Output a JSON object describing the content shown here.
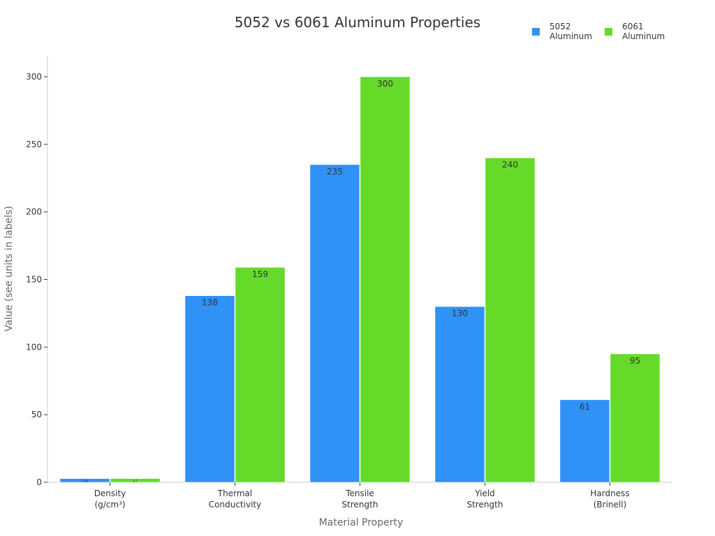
{
  "chart_data": {
    "type": "bar",
    "title": "5052 vs 6061 Aluminum Properties",
    "xlabel": "Material Property",
    "ylabel": "Value (see units in labels)",
    "categories": [
      "Density\n(g/cm³)",
      "Thermal\nConductivity",
      "Tensile\nStrength",
      "Yield\nStrength",
      "Hardness\n(Brinell)"
    ],
    "series": [
      {
        "name": "5052\nAluminum",
        "color": "#3091f7",
        "values": [
          2.68,
          138,
          235,
          130,
          61
        ]
      },
      {
        "name": "6061\nAluminum",
        "color": "#66da29",
        "values": [
          2.7,
          159,
          300,
          240,
          95
        ]
      }
    ],
    "ylim": [
      0,
      315
    ],
    "yticks": [
      0,
      50,
      100,
      150,
      200,
      250,
      300
    ],
    "grid": false,
    "legend_position": "top-right",
    "data_labels": true
  }
}
